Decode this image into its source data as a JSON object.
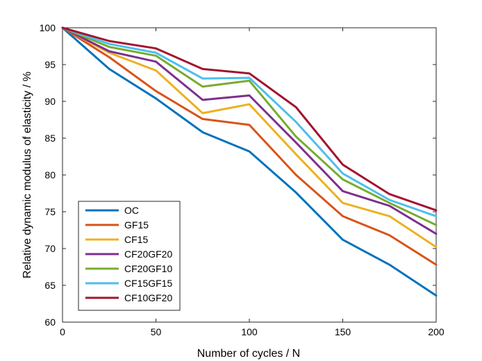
{
  "chart_data": {
    "type": "line",
    "title": "",
    "xlabel": "Number of cycles / N",
    "ylabel": "Relative dynamic modulus of elasticity / %",
    "xlim": [
      0,
      200
    ],
    "ylim": [
      60,
      100
    ],
    "xticks": [
      0,
      50,
      100,
      150,
      200
    ],
    "yticks": [
      60,
      65,
      70,
      75,
      80,
      85,
      90,
      95,
      100
    ],
    "grid": false,
    "legend_position": "bottom-left",
    "x": [
      0,
      25,
      50,
      75,
      100,
      125,
      150,
      175,
      200
    ],
    "series": [
      {
        "name": "OC",
        "color": "#0072BD",
        "values": [
          100,
          94.4,
          90.4,
          85.8,
          83.2,
          77.6,
          71.2,
          67.8,
          63.6
        ]
      },
      {
        "name": "GF15",
        "color": "#D95319",
        "values": [
          100,
          96.0,
          91.4,
          87.6,
          86.8,
          80.0,
          74.4,
          71.8,
          67.8
        ]
      },
      {
        "name": "CF15",
        "color": "#EDB120",
        "values": [
          100,
          96.6,
          94.2,
          88.4,
          89.6,
          82.8,
          76.2,
          74.4,
          70.2
        ]
      },
      {
        "name": "CF20GF20",
        "color": "#7E2F8E",
        "values": [
          100,
          96.8,
          95.4,
          90.2,
          90.8,
          84.4,
          77.8,
          75.8,
          72.0
        ]
      },
      {
        "name": "CF20GF10",
        "color": "#77AC30",
        "values": [
          100,
          97.4,
          96.2,
          92.0,
          92.8,
          85.2,
          79.4,
          76.2,
          73.2
        ]
      },
      {
        "name": "CF15GF15",
        "color": "#4DBEEE",
        "values": [
          100,
          97.8,
          96.6,
          93.1,
          93.2,
          87.2,
          80.2,
          76.6,
          74.4
        ]
      },
      {
        "name": "CF10GF20",
        "color": "#A2142F",
        "values": [
          100,
          98.2,
          97.2,
          94.4,
          93.8,
          89.2,
          81.4,
          77.4,
          75.2
        ]
      }
    ]
  }
}
